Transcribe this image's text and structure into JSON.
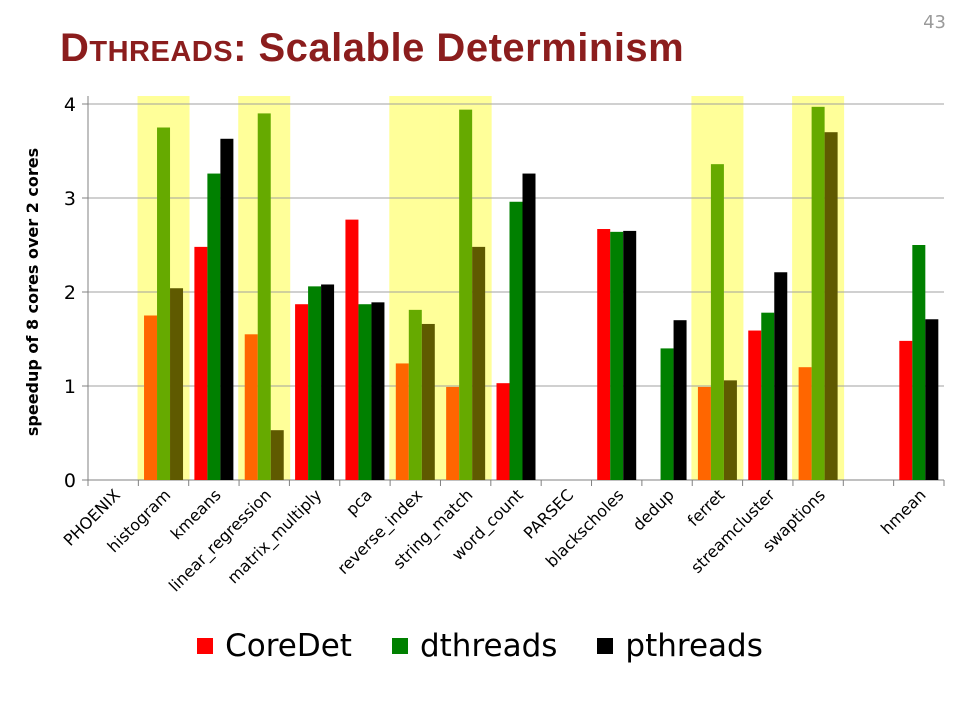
{
  "slide": {
    "title_initial": "D",
    "title_smallcaps": "THREADS",
    "title_rest": ": Scalable Determinism",
    "page_number": "43"
  },
  "colors": {
    "coredet": "#ff0000",
    "coredet_highlighted": "#ff6600",
    "dthreads": "#008000",
    "dthreads_highlighted": "#66aa00",
    "pthreads": "#000000",
    "pthreads_highlighted": "#5f5a00",
    "highlight_band": "#ffff99",
    "title": "#8b1d1d"
  },
  "chart_data": {
    "type": "bar",
    "title": "",
    "xlabel": "",
    "ylabel": "speedup of 8 cores over 2 cores",
    "ylim": [
      0,
      4
    ],
    "yticks": [
      "0",
      "1",
      "2",
      "3",
      "4"
    ],
    "grid": true,
    "legend_position": "bottom",
    "categories": [
      "PHOENIX",
      "histogram",
      "kmeans",
      "linear_regression",
      "matrix_multiply",
      "pca",
      "reverse_index",
      "string_match",
      "word_count",
      "PARSEC",
      "blackscholes",
      "dedup",
      "ferret",
      "streamcluster",
      "swaptions",
      "",
      "hmean"
    ],
    "highlighted": [
      "histogram",
      "linear_regression",
      "reverse_index",
      "string_match",
      "ferret",
      "swaptions"
    ],
    "series": [
      {
        "name": "CoreDet",
        "key": "coredet",
        "values": [
          null,
          1.75,
          2.48,
          1.55,
          1.87,
          2.77,
          1.24,
          0.99,
          1.03,
          null,
          2.67,
          null,
          0.99,
          1.59,
          1.2,
          null,
          1.48
        ]
      },
      {
        "name": "dthreads",
        "key": "dthreads",
        "values": [
          null,
          3.75,
          3.26,
          3.9,
          2.06,
          1.87,
          1.81,
          3.94,
          2.96,
          null,
          2.64,
          1.4,
          3.36,
          1.78,
          3.97,
          null,
          2.5
        ]
      },
      {
        "name": "pthreads",
        "key": "pthreads",
        "values": [
          null,
          2.04,
          3.63,
          0.53,
          2.08,
          1.89,
          1.66,
          2.48,
          3.26,
          null,
          2.65,
          1.7,
          1.06,
          2.21,
          3.7,
          null,
          1.71
        ]
      }
    ]
  }
}
